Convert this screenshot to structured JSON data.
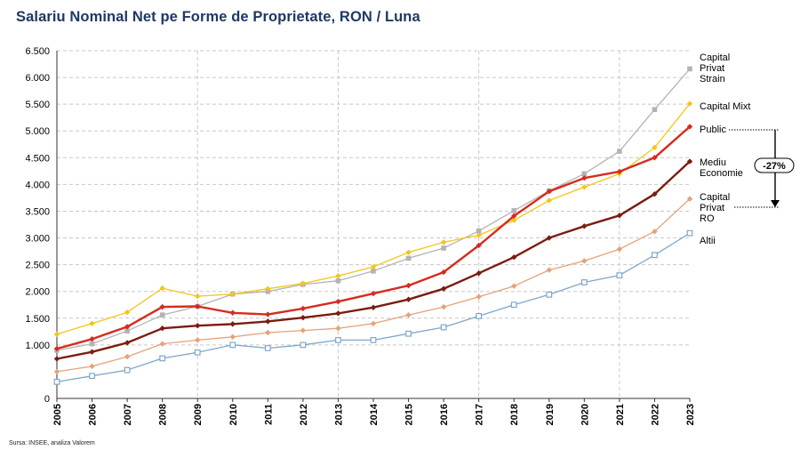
{
  "chart_data": {
    "type": "line",
    "title": "Salariu Nominal Net pe Forme de Proprietate, RON / Luna",
    "x": [
      "2005",
      "2006",
      "2007",
      "2008",
      "2009",
      "2010",
      "2011",
      "2012",
      "2013",
      "2014",
      "2015",
      "2016",
      "2017",
      "2018",
      "2019",
      "2020",
      "2021",
      "2022",
      "2023"
    ],
    "y_ticks": [
      0,
      1000,
      1500,
      2000,
      2500,
      3000,
      3500,
      4000,
      4500,
      5000,
      5500,
      6000,
      6500
    ],
    "y_tick_labels": [
      "0",
      "1.000",
      "1.500",
      "2.000",
      "2.500",
      "3.000",
      "3.500",
      "4.000",
      "4.500",
      "5.000",
      "5.500",
      "6.000",
      "6.500"
    ],
    "ylim": [
      0,
      6500
    ],
    "grid": true,
    "legend": "inline labels at right end of series",
    "series": [
      {
        "name": "Capital Privat Strain",
        "label_lines": [
          "Capital",
          "Privat",
          "Strain"
        ],
        "color": "#b3b3b3",
        "marker": "square",
        "values": [
          900,
          1020,
          1260,
          1560,
          1720,
          1950,
          2000,
          2130,
          2200,
          2380,
          2620,
          2810,
          3130,
          3510,
          3880,
          4200,
          4620,
          5400,
          6160
        ]
      },
      {
        "name": "Capital Mixt",
        "label_lines": [
          "Capital Mixt"
        ],
        "color": "#f5c518",
        "marker": "diamond",
        "values": [
          1200,
          1400,
          1610,
          2060,
          1910,
          1950,
          2050,
          2150,
          2290,
          2460,
          2730,
          2920,
          3050,
          3330,
          3700,
          3950,
          4200,
          4690,
          5510
        ]
      },
      {
        "name": "Public",
        "label_lines": [
          "Public"
        ],
        "color": "#d62b1f",
        "marker": "diamond",
        "values": [
          930,
          1110,
          1340,
          1710,
          1720,
          1600,
          1570,
          1680,
          1810,
          1960,
          2110,
          2360,
          2860,
          3410,
          3870,
          4120,
          4240,
          4500,
          5080
        ]
      },
      {
        "name": "Mediu Economie",
        "label_lines": [
          "Mediu",
          "Economie"
        ],
        "color": "#7b1c10",
        "marker": "diamond",
        "values": [
          740,
          870,
          1040,
          1310,
          1360,
          1390,
          1440,
          1510,
          1590,
          1700,
          1850,
          2050,
          2340,
          2640,
          3000,
          3220,
          3420,
          3820,
          4430
        ]
      },
      {
        "name": "Capital Privat RO",
        "label_lines": [
          "Capital",
          "Privat",
          "RO"
        ],
        "color": "#e4a27a",
        "marker": "diamond",
        "values": [
          500,
          600,
          780,
          1020,
          1090,
          1150,
          1230,
          1270,
          1310,
          1400,
          1560,
          1710,
          1900,
          2100,
          2400,
          2570,
          2790,
          3120,
          3730
        ]
      },
      {
        "name": "Altii",
        "label_lines": [
          "Altii"
        ],
        "color": "#7fa7c9",
        "marker": "open-square",
        "values": [
          310,
          420,
          530,
          750,
          860,
          1000,
          940,
          1000,
          1090,
          1090,
          1210,
          1330,
          1540,
          1750,
          1940,
          2170,
          2300,
          2680,
          3090
        ]
      }
    ],
    "annotation": {
      "text": "-27%",
      "from_series": "Public",
      "to_series": "Capital Privat RO"
    }
  },
  "footer": {
    "source": "Sursa: INSEE, analiza Valorem"
  }
}
